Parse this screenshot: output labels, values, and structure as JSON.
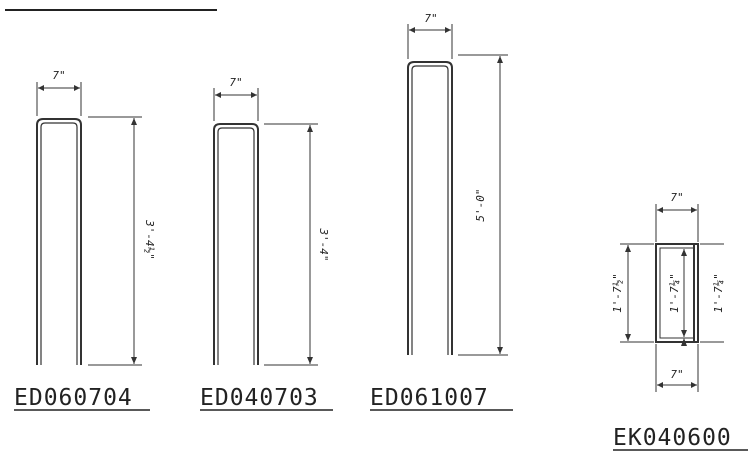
{
  "parts": [
    {
      "code": "ED060704",
      "width_dim": "7\"",
      "height_dim": "3'-4½\""
    },
    {
      "code": "ED040703",
      "width_dim": "7\"",
      "height_dim": "3'-4\""
    },
    {
      "code": "ED061007",
      "width_dim": "7\"",
      "height_dim": "5'-0\""
    },
    {
      "code": "EK040600",
      "width_dim_top": "7\"",
      "width_dim_bottom": "7\"",
      "height_dim_outer": "1'-7½\"",
      "height_dim_inner": "1'-7¼\"",
      "height_dim_right": "1'-7¼\""
    }
  ]
}
